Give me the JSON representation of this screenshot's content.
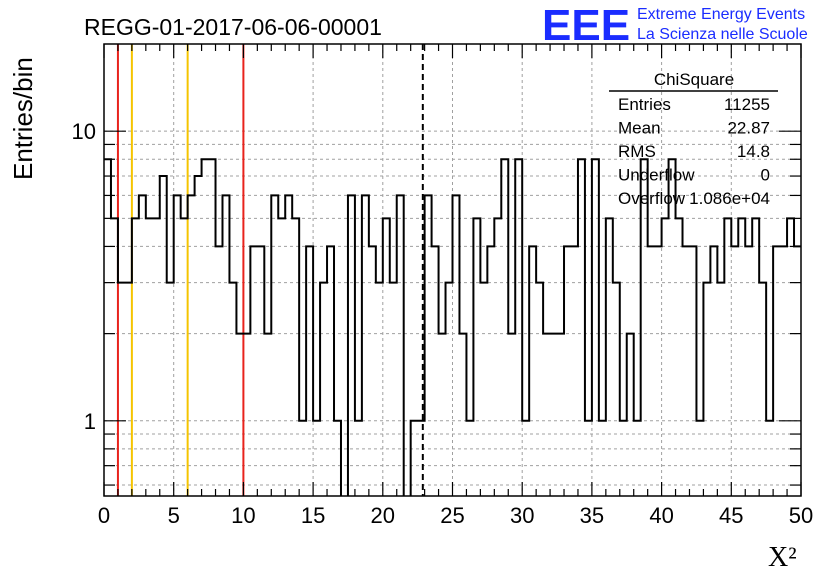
{
  "header": {
    "title": "REGG-01-2017-06-06-00001",
    "logo_text": "EEE",
    "logo_line1": "Extreme Energy Events",
    "logo_line2": "La Scienza nelle Scuole"
  },
  "stats": {
    "name": "ChiSquare",
    "rows": [
      {
        "label": "Entries",
        "value": "11255"
      },
      {
        "label": "Mean",
        "value": "22.87"
      },
      {
        "label": "RMS",
        "value": "14.8"
      },
      {
        "label": "Underflow",
        "value": "0"
      },
      {
        "label": "Overflow",
        "value": "1.086e+04"
      }
    ]
  },
  "colors": {
    "red_line": "#e8231c",
    "orange_line": "#f5c400",
    "histogram": "#000000",
    "grid": "#a0a0a0"
  },
  "chart_data": {
    "type": "histogram",
    "xlabel": "X²",
    "ylabel": "Entries/bin",
    "xlim": [
      0,
      50
    ],
    "ylim": [
      0.55,
      20
    ],
    "yscale": "log",
    "grid": true,
    "bin_width": 0.5,
    "xticks": [
      0,
      5,
      10,
      15,
      20,
      25,
      30,
      35,
      40,
      45,
      50
    ],
    "ytick_labels": [
      1,
      10
    ],
    "values": [
      8,
      5,
      3,
      3,
      5,
      6,
      5,
      5,
      7,
      3,
      6,
      5,
      6,
      7,
      8,
      8,
      4,
      6,
      3,
      2,
      2,
      4,
      4,
      2,
      6,
      5,
      6,
      5,
      1,
      4,
      1,
      3,
      4,
      1,
      0,
      6,
      1,
      6,
      4,
      3,
      5,
      3,
      6,
      0,
      1,
      1,
      6,
      4,
      2,
      3,
      6,
      2,
      1,
      5,
      3,
      4,
      5,
      8,
      2,
      8,
      1,
      4,
      3,
      2,
      2,
      2,
      4,
      4,
      8,
      1,
      8,
      1,
      5,
      3,
      1,
      2,
      1,
      8,
      4,
      4,
      5,
      8,
      5,
      4,
      4,
      1,
      3,
      4,
      3,
      5,
      4,
      5,
      4,
      5,
      3,
      1,
      4,
      4,
      5,
      4
    ],
    "vertical_lines": [
      {
        "x": 1,
        "color": "red",
        "style": "solid"
      },
      {
        "x": 2,
        "color": "orange",
        "style": "solid"
      },
      {
        "x": 6,
        "color": "orange",
        "style": "solid"
      },
      {
        "x": 10,
        "color": "red",
        "style": "solid"
      },
      {
        "x": 22.87,
        "color": "black",
        "style": "dashed"
      }
    ]
  }
}
